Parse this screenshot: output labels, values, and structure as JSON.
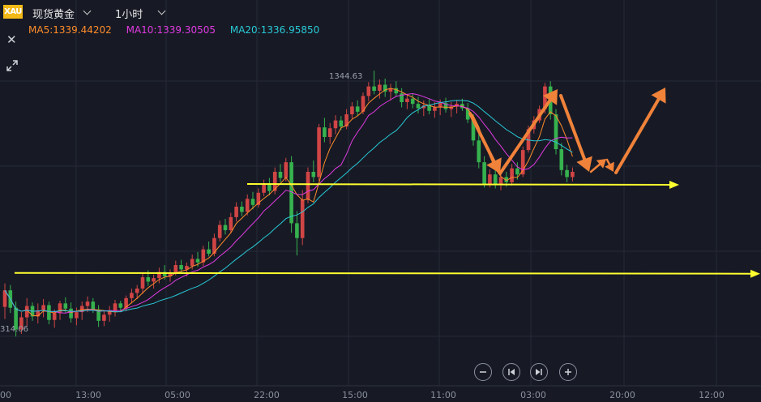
{
  "header": {
    "symbol_badge": "XAU",
    "symbol_name": "现货黄金",
    "timeframe": "1小时",
    "close_icon": "close-icon",
    "expand_icon": "expand-icon"
  },
  "indicators": [
    {
      "label": "MA5:1339.44202",
      "color": "#ff8c2a"
    },
    {
      "label": "MA10:1339.30505",
      "color": "#e03ae0"
    },
    {
      "label": "MA20:1336.95850",
      "color": "#28c9d6"
    }
  ],
  "controls": [
    {
      "name": "zoom-out-button",
      "icon": "minus-icon"
    },
    {
      "name": "jump-start-button",
      "icon": "skip-back-icon"
    },
    {
      "name": "jump-end-button",
      "icon": "skip-forward-icon"
    },
    {
      "name": "zoom-in-button",
      "icon": "plus-icon"
    }
  ],
  "chart_data": {
    "type": "candlestick",
    "x_tick_labels": [
      "13:00",
      "05:00",
      "22:00",
      "15:00",
      "11:00",
      "03:00",
      "20:00",
      "12:00"
    ],
    "left_edge_tick_fragment": "00",
    "y_range": [
      1309,
      1349
    ],
    "high_label": "1344.63",
    "low_label_fragment": "314.06",
    "colors": {
      "up": "#d24545",
      "down": "#36b24e",
      "ma5": "#ff8c2a",
      "ma10": "#e03ae0",
      "ma20": "#28c9d6",
      "support": "#ffff2e",
      "arrow": "#f0823a"
    },
    "candles_ohlc": [
      [
        1317.5,
        1320.2,
        1316.1,
        1319.4
      ],
      [
        1319.4,
        1320.0,
        1316.8,
        1317.4
      ],
      [
        1317.4,
        1318.1,
        1314.1,
        1314.9
      ],
      [
        1314.9,
        1316.9,
        1314.4,
        1316.3
      ],
      [
        1316.3,
        1318.5,
        1315.2,
        1317.6
      ],
      [
        1317.6,
        1318.0,
        1315.9,
        1316.4
      ],
      [
        1316.4,
        1317.9,
        1315.6,
        1317.1
      ],
      [
        1317.1,
        1318.4,
        1316.3,
        1317.7
      ],
      [
        1317.7,
        1318.1,
        1315.5,
        1316.0
      ],
      [
        1316.0,
        1317.2,
        1315.1,
        1316.8
      ],
      [
        1316.8,
        1318.2,
        1316.0,
        1317.9
      ],
      [
        1317.9,
        1318.6,
        1316.8,
        1317.3
      ],
      [
        1317.3,
        1318.0,
        1315.7,
        1316.2
      ],
      [
        1316.2,
        1317.4,
        1315.4,
        1316.9
      ],
      [
        1316.9,
        1318.1,
        1316.0,
        1317.6
      ],
      [
        1317.6,
        1318.7,
        1316.9,
        1318.1
      ],
      [
        1318.1,
        1318.5,
        1316.8,
        1317.2
      ],
      [
        1317.2,
        1317.7,
        1315.2,
        1315.9
      ],
      [
        1315.9,
        1317.0,
        1315.3,
        1316.6
      ],
      [
        1316.6,
        1317.6,
        1315.8,
        1317.0
      ],
      [
        1317.0,
        1318.3,
        1316.4,
        1317.9
      ],
      [
        1317.9,
        1318.2,
        1316.9,
        1317.4
      ],
      [
        1317.4,
        1318.8,
        1317.0,
        1318.5
      ],
      [
        1318.5,
        1319.6,
        1317.9,
        1319.1
      ],
      [
        1319.1,
        1320.0,
        1318.4,
        1319.6
      ],
      [
        1319.6,
        1321.4,
        1319.0,
        1320.9
      ],
      [
        1320.9,
        1321.7,
        1319.9,
        1320.4
      ],
      [
        1320.4,
        1321.2,
        1319.6,
        1320.8
      ],
      [
        1320.8,
        1322.0,
        1320.2,
        1321.5
      ],
      [
        1321.5,
        1322.3,
        1320.6,
        1321.0
      ],
      [
        1321.0,
        1321.8,
        1320.4,
        1321.4
      ],
      [
        1321.4,
        1322.8,
        1321.1,
        1322.3
      ],
      [
        1322.3,
        1322.9,
        1321.3,
        1321.8
      ],
      [
        1321.8,
        1322.6,
        1321.0,
        1322.2
      ],
      [
        1322.2,
        1323.5,
        1321.8,
        1323.0
      ],
      [
        1323.0,
        1323.8,
        1322.1,
        1322.6
      ],
      [
        1322.6,
        1324.5,
        1322.2,
        1324.1
      ],
      [
        1324.1,
        1325.0,
        1323.3,
        1323.6
      ],
      [
        1323.6,
        1325.9,
        1323.3,
        1325.4
      ],
      [
        1325.4,
        1327.4,
        1325.0,
        1326.9
      ],
      [
        1326.9,
        1327.6,
        1325.8,
        1326.3
      ],
      [
        1326.3,
        1328.3,
        1326.0,
        1327.8
      ],
      [
        1327.8,
        1329.5,
        1327.3,
        1329.0
      ],
      [
        1329.0,
        1329.6,
        1327.9,
        1328.4
      ],
      [
        1328.4,
        1330.4,
        1328.0,
        1329.9
      ],
      [
        1329.9,
        1330.7,
        1328.7,
        1329.2
      ],
      [
        1329.2,
        1331.1,
        1328.9,
        1330.6
      ],
      [
        1330.6,
        1332.1,
        1330.2,
        1331.6
      ],
      [
        1331.6,
        1332.3,
        1330.3,
        1330.8
      ],
      [
        1330.8,
        1333.5,
        1330.4,
        1333.0
      ],
      [
        1333.0,
        1333.9,
        1331.8,
        1332.3
      ],
      [
        1332.3,
        1334.6,
        1331.9,
        1334.1
      ],
      [
        1334.1,
        1334.8,
        1326.0,
        1327.1
      ],
      [
        1327.1,
        1328.5,
        1323.4,
        1325.4
      ],
      [
        1325.4,
        1330.9,
        1324.6,
        1329.8
      ],
      [
        1329.8,
        1333.5,
        1329.4,
        1333.0
      ],
      [
        1333.0,
        1334.3,
        1331.8,
        1332.4
      ],
      [
        1332.4,
        1338.5,
        1332.0,
        1338.1
      ],
      [
        1338.1,
        1339.2,
        1336.4,
        1337.0
      ],
      [
        1337.0,
        1338.6,
        1336.2,
        1338.0
      ],
      [
        1338.0,
        1339.5,
        1337.3,
        1338.9
      ],
      [
        1338.9,
        1339.4,
        1337.8,
        1338.2
      ],
      [
        1338.2,
        1340.2,
        1337.9,
        1339.6
      ],
      [
        1339.6,
        1341.0,
        1339.1,
        1340.5
      ],
      [
        1340.5,
        1341.2,
        1339.4,
        1339.9
      ],
      [
        1339.9,
        1342.1,
        1339.6,
        1341.7
      ],
      [
        1341.7,
        1343.3,
        1341.1,
        1342.8
      ],
      [
        1342.8,
        1344.6,
        1341.9,
        1342.3
      ],
      [
        1342.3,
        1343.6,
        1341.4,
        1343.0
      ],
      [
        1343.0,
        1343.7,
        1341.6,
        1342.2
      ],
      [
        1342.2,
        1343.1,
        1341.2,
        1342.6
      ],
      [
        1342.6,
        1343.4,
        1341.6,
        1342.0
      ],
      [
        1342.0,
        1342.6,
        1340.4,
        1341.0
      ],
      [
        1341.0,
        1341.9,
        1340.2,
        1341.4
      ],
      [
        1341.4,
        1342.0,
        1340.3,
        1340.8
      ],
      [
        1340.8,
        1341.6,
        1339.7,
        1340.3
      ],
      [
        1340.3,
        1341.2,
        1339.4,
        1340.6
      ],
      [
        1340.6,
        1341.4,
        1339.6,
        1340.0
      ],
      [
        1340.0,
        1341.0,
        1339.2,
        1340.4
      ],
      [
        1340.4,
        1341.3,
        1339.5,
        1340.9
      ],
      [
        1340.9,
        1341.5,
        1339.8,
        1340.2
      ],
      [
        1340.2,
        1341.0,
        1339.3,
        1340.5
      ],
      [
        1340.5,
        1341.2,
        1339.7,
        1340.8
      ],
      [
        1340.8,
        1341.4,
        1340.0,
        1340.3
      ],
      [
        1340.3,
        1340.9,
        1338.6,
        1339.0
      ],
      [
        1339.0,
        1339.6,
        1336.0,
        1336.6
      ],
      [
        1336.6,
        1337.4,
        1333.4,
        1334.1
      ],
      [
        1334.1,
        1334.8,
        1331.2,
        1331.6
      ],
      [
        1331.6,
        1333.3,
        1331.2,
        1332.7
      ],
      [
        1332.7,
        1333.2,
        1331.1,
        1331.5
      ],
      [
        1331.5,
        1332.8,
        1330.9,
        1332.4
      ],
      [
        1332.4,
        1333.0,
        1331.3,
        1331.8
      ],
      [
        1331.8,
        1333.9,
        1331.4,
        1333.4
      ],
      [
        1333.4,
        1334.1,
        1332.1,
        1332.7
      ],
      [
        1332.7,
        1335.9,
        1332.4,
        1335.5
      ],
      [
        1335.5,
        1338.3,
        1335.2,
        1337.9
      ],
      [
        1337.9,
        1339.4,
        1337.4,
        1338.9
      ],
      [
        1338.9,
        1340.6,
        1338.6,
        1340.2
      ],
      [
        1340.2,
        1343.2,
        1339.7,
        1342.8
      ],
      [
        1342.8,
        1343.4,
        1339.0,
        1339.6
      ],
      [
        1339.6,
        1340.2,
        1335.0,
        1335.6
      ],
      [
        1335.6,
        1336.3,
        1332.6,
        1333.2
      ],
      [
        1333.2,
        1333.8,
        1331.8,
        1332.4
      ],
      [
        1332.4,
        1333.5,
        1331.9,
        1333.0
      ]
    ],
    "ma_lines": [
      "MA5",
      "MA10",
      "MA20"
    ],
    "support_levels": [
      1331.6,
      1321.4
    ],
    "annotation_arrows": "hand-drawn orange zigzag projection arrows"
  }
}
